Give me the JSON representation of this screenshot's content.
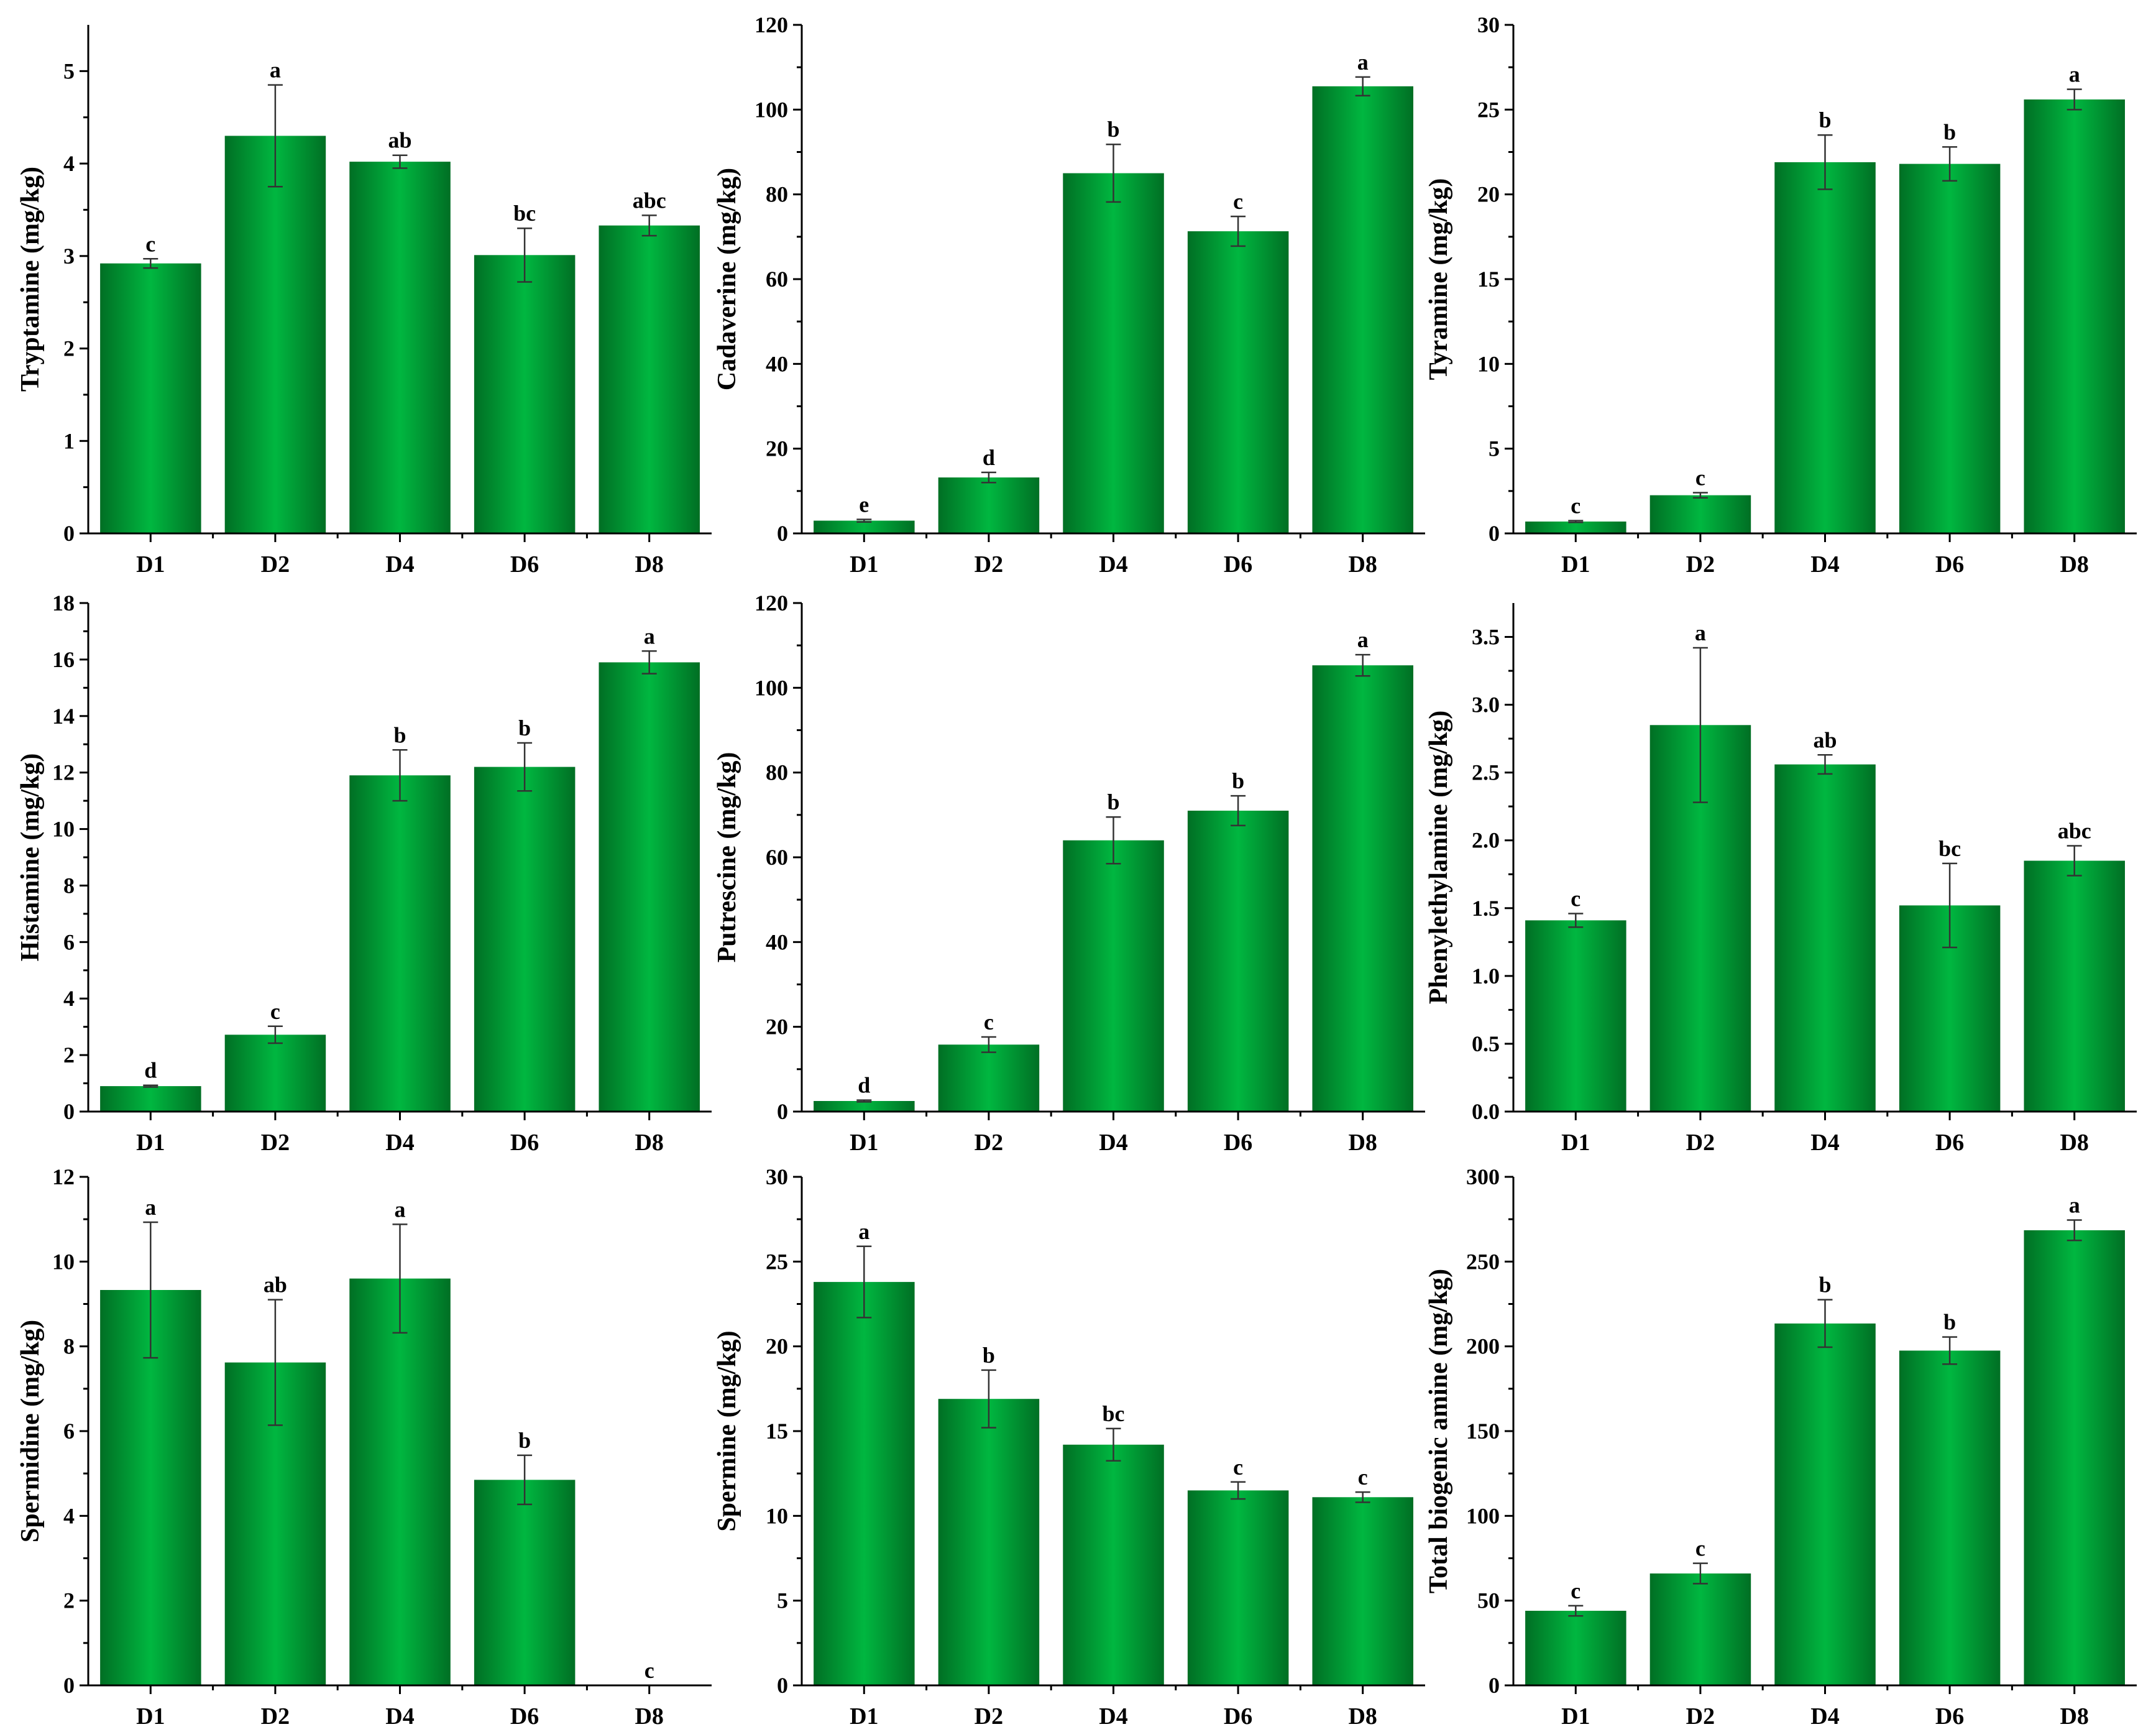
{
  "colors": {
    "bar_edge": "#006f24",
    "bar_center": "#00b740",
    "axis": "#000000"
  },
  "chart_data": [
    {
      "type": "bar",
      "ylabel": "Tryptamine (mg/kg)",
      "categories": [
        "D1",
        "D2",
        "D4",
        "D6",
        "D8"
      ],
      "values": [
        2.92,
        4.3,
        4.02,
        3.01,
        3.33
      ],
      "errors": [
        0.05,
        0.55,
        0.07,
        0.29,
        0.11
      ],
      "labels": [
        "c",
        "a",
        "ab",
        "bc",
        "abc"
      ],
      "ylim": [
        0,
        5.5
      ],
      "yticks": [
        0,
        1,
        2,
        3,
        4,
        5
      ],
      "ytick_labels": [
        "0",
        "1",
        "2",
        "3",
        "4",
        "5"
      ]
    },
    {
      "type": "bar",
      "ylabel": "Cadaverine (mg/kg)",
      "categories": [
        "D1",
        "D2",
        "D4",
        "D6",
        "D8"
      ],
      "values": [
        3.0,
        13.2,
        85.0,
        71.3,
        105.5
      ],
      "errors": [
        0.3,
        1.2,
        6.8,
        3.5,
        2.2
      ],
      "labels": [
        "e",
        "d",
        "b",
        "c",
        "a"
      ],
      "ylim": [
        0,
        120
      ],
      "yticks": [
        0,
        20,
        40,
        60,
        80,
        100,
        120
      ],
      "ytick_labels": [
        "0",
        "20",
        "40",
        "60",
        "80",
        "100",
        "120"
      ]
    },
    {
      "type": "bar",
      "ylabel": "Tyramine (mg/kg)",
      "categories": [
        "D1",
        "D2",
        "D4",
        "D6",
        "D8"
      ],
      "values": [
        0.7,
        2.25,
        21.9,
        21.8,
        25.6
      ],
      "errors": [
        0.05,
        0.15,
        1.6,
        1.0,
        0.6
      ],
      "labels": [
        "c",
        "c",
        "b",
        "b",
        "a"
      ],
      "ylim": [
        0,
        30
      ],
      "yticks": [
        0,
        5,
        10,
        15,
        20,
        25,
        30
      ],
      "ytick_labels": [
        "0",
        "5",
        "10",
        "15",
        "20",
        "25",
        "30"
      ]
    },
    {
      "type": "bar",
      "ylabel": "Histamine (mg/kg)",
      "categories": [
        "D1",
        "D2",
        "D4",
        "D6",
        "D8"
      ],
      "values": [
        0.9,
        2.72,
        11.9,
        12.2,
        15.9
      ],
      "errors": [
        0.03,
        0.3,
        0.9,
        0.85,
        0.4
      ],
      "labels": [
        "d",
        "c",
        "b",
        "b",
        "a"
      ],
      "ylim": [
        0,
        18
      ],
      "yticks": [
        0,
        2,
        4,
        6,
        8,
        10,
        12,
        14,
        16,
        18
      ],
      "ytick_labels": [
        "0",
        "2",
        "4",
        "6",
        "8",
        "10",
        "12",
        "14",
        "16",
        "18"
      ]
    },
    {
      "type": "bar",
      "ylabel": "Putrescine (mg/kg)",
      "categories": [
        "D1",
        "D2",
        "D4",
        "D6",
        "D8"
      ],
      "values": [
        2.5,
        15.8,
        64.0,
        71.0,
        105.3
      ],
      "errors": [
        0.2,
        1.8,
        5.5,
        3.5,
        2.5
      ],
      "labels": [
        "d",
        "c",
        "b",
        "b",
        "a"
      ],
      "ylim": [
        0,
        120
      ],
      "yticks": [
        0,
        20,
        40,
        60,
        80,
        100,
        120
      ],
      "ytick_labels": [
        "0",
        "20",
        "40",
        "60",
        "80",
        "100",
        "120"
      ]
    },
    {
      "type": "bar",
      "ylabel": "Phenylethylamine (mg/kg)",
      "categories": [
        "D1",
        "D2",
        "D4",
        "D6",
        "D8"
      ],
      "values": [
        1.41,
        2.85,
        2.56,
        1.52,
        1.85
      ],
      "errors": [
        0.05,
        0.57,
        0.07,
        0.31,
        0.11
      ],
      "labels": [
        "c",
        "a",
        "ab",
        "bc",
        "abc"
      ],
      "ylim": [
        0,
        3.75
      ],
      "yticks": [
        0,
        0.5,
        1.0,
        1.5,
        2.0,
        2.5,
        3.0,
        3.5
      ],
      "ytick_labels": [
        "0.0",
        "0.5",
        "1.0",
        "1.5",
        "2.0",
        "2.5",
        "3.0",
        "3.5"
      ]
    },
    {
      "type": "bar",
      "ylabel": "Spermidine (mg/kg)",
      "categories": [
        "D1",
        "D2",
        "D4",
        "D6",
        "D8"
      ],
      "values": [
        9.33,
        7.62,
        9.6,
        4.85,
        0
      ],
      "errors": [
        1.6,
        1.48,
        1.28,
        0.58,
        0
      ],
      "labels": [
        "a",
        "ab",
        "a",
        "b",
        "c"
      ],
      "ylim": [
        0,
        12
      ],
      "yticks": [
        0,
        2,
        4,
        6,
        8,
        10,
        12
      ],
      "ytick_labels": [
        "0",
        "2",
        "4",
        "6",
        "8",
        "10",
        "12"
      ]
    },
    {
      "type": "bar",
      "ylabel": "Spermine (mg/kg)",
      "categories": [
        "D1",
        "D2",
        "D4",
        "D6",
        "D8"
      ],
      "values": [
        23.8,
        16.9,
        14.2,
        11.5,
        11.1
      ],
      "errors": [
        2.1,
        1.7,
        0.95,
        0.5,
        0.3
      ],
      "labels": [
        "a",
        "b",
        "bc",
        "c",
        "c"
      ],
      "ylim": [
        0,
        30
      ],
      "yticks": [
        0,
        5,
        10,
        15,
        20,
        25,
        30
      ],
      "ytick_labels": [
        "0",
        "5",
        "10",
        "15",
        "20",
        "25",
        "30"
      ]
    },
    {
      "type": "bar",
      "ylabel": "Total biogenic amine (mg/kg)",
      "categories": [
        "D1",
        "D2",
        "D4",
        "D6",
        "D8"
      ],
      "values": [
        44.0,
        66.0,
        213.5,
        197.5,
        268.5
      ],
      "errors": [
        3.0,
        6.0,
        14.0,
        8.0,
        6.0
      ],
      "labels": [
        "c",
        "c",
        "b",
        "b",
        "a"
      ],
      "ylim": [
        0,
        300
      ],
      "yticks": [
        0,
        50,
        100,
        150,
        200,
        250,
        300
      ],
      "ytick_labels": [
        "0",
        "50",
        "100",
        "150",
        "200",
        "250",
        "300"
      ]
    }
  ]
}
